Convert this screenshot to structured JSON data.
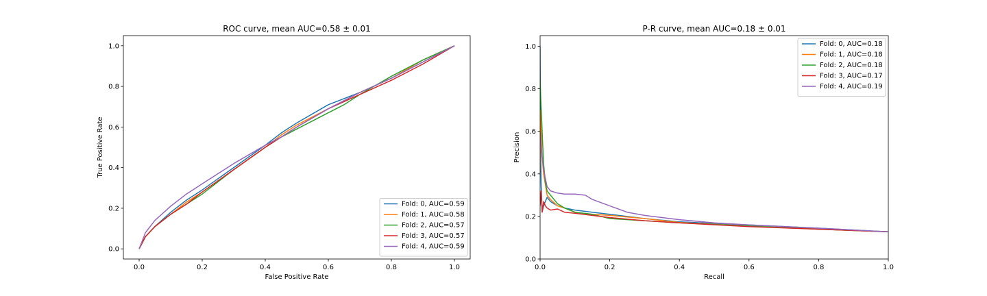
{
  "chart_data": [
    {
      "type": "line",
      "title": "ROC curve, mean AUC=0.58 ± 0.01",
      "xlabel": "False Positive Rate",
      "ylabel": "True Positive Rate",
      "xlim": [
        -0.05,
        1.05
      ],
      "ylim": [
        -0.05,
        1.05
      ],
      "xticks": [
        0.0,
        0.2,
        0.4,
        0.6,
        0.8,
        1.0
      ],
      "yticks": [
        0.0,
        0.2,
        0.4,
        0.6,
        0.8,
        1.0
      ],
      "legend_position": "lower-right",
      "grid": false,
      "series": [
        {
          "name": "Fold: 0, AUC=0.59",
          "color": "#1f77b4",
          "x": [
            0,
            0.02,
            0.05,
            0.1,
            0.15,
            0.2,
            0.3,
            0.4,
            0.45,
            0.5,
            0.6,
            0.7,
            0.8,
            0.9,
            1.0
          ],
          "y": [
            0,
            0.06,
            0.11,
            0.18,
            0.24,
            0.29,
            0.4,
            0.51,
            0.57,
            0.62,
            0.71,
            0.77,
            0.84,
            0.92,
            1.0
          ]
        },
        {
          "name": "Fold: 1, AUC=0.58",
          "color": "#ff7f0e",
          "x": [
            0,
            0.02,
            0.05,
            0.1,
            0.15,
            0.2,
            0.3,
            0.4,
            0.45,
            0.5,
            0.6,
            0.7,
            0.8,
            0.9,
            1.0
          ],
          "y": [
            0,
            0.06,
            0.11,
            0.17,
            0.23,
            0.28,
            0.39,
            0.5,
            0.56,
            0.61,
            0.69,
            0.77,
            0.84,
            0.93,
            1.0
          ]
        },
        {
          "name": "Fold: 2, AUC=0.57",
          "color": "#2ca02c",
          "x": [
            0,
            0.02,
            0.05,
            0.1,
            0.15,
            0.2,
            0.3,
            0.4,
            0.45,
            0.5,
            0.6,
            0.65,
            0.7,
            0.8,
            0.9,
            1.0
          ],
          "y": [
            0,
            0.06,
            0.11,
            0.17,
            0.22,
            0.27,
            0.39,
            0.5,
            0.55,
            0.59,
            0.67,
            0.71,
            0.76,
            0.85,
            0.93,
            1.0
          ]
        },
        {
          "name": "Fold: 3, AUC=0.57",
          "color": "#d62728",
          "x": [
            0,
            0.02,
            0.05,
            0.1,
            0.15,
            0.2,
            0.3,
            0.4,
            0.45,
            0.5,
            0.6,
            0.7,
            0.8,
            0.9,
            1.0
          ],
          "y": [
            0,
            0.06,
            0.11,
            0.17,
            0.22,
            0.28,
            0.39,
            0.5,
            0.55,
            0.6,
            0.69,
            0.76,
            0.83,
            0.91,
            1.0
          ]
        },
        {
          "name": "Fold: 4, AUC=0.59",
          "color": "#9467bd",
          "x": [
            0,
            0.02,
            0.05,
            0.1,
            0.15,
            0.2,
            0.3,
            0.4,
            0.45,
            0.5,
            0.6,
            0.7,
            0.8,
            0.9,
            1.0
          ],
          "y": [
            0,
            0.08,
            0.14,
            0.21,
            0.27,
            0.32,
            0.42,
            0.51,
            0.55,
            0.6,
            0.69,
            0.77,
            0.84,
            0.92,
            1.0
          ]
        }
      ]
    },
    {
      "type": "line",
      "title": "P-R curve, mean AUC=0.18 ± 0.01",
      "xlabel": "Recall",
      "ylabel": "Precision",
      "xlim": [
        0,
        1
      ],
      "ylim": [
        0,
        1.05
      ],
      "xticks": [
        0.0,
        0.2,
        0.4,
        0.6,
        0.8,
        1.0
      ],
      "yticks": [
        0.0,
        0.2,
        0.4,
        0.6,
        0.8,
        1.0
      ],
      "legend_position": "upper-right",
      "grid": false,
      "series": [
        {
          "name": "Fold: 0, AUC=0.18",
          "color": "#1f77b4",
          "x": [
            0,
            0.001,
            0.003,
            0.006,
            0.01,
            0.015,
            0.02,
            0.03,
            0.05,
            0.07,
            0.1,
            0.15,
            0.2,
            0.3,
            0.4,
            0.6,
            0.8,
            1.0
          ],
          "y": [
            1.0,
            0.6,
            0.35,
            0.22,
            0.25,
            0.27,
            0.29,
            0.27,
            0.25,
            0.24,
            0.23,
            0.22,
            0.21,
            0.19,
            0.175,
            0.16,
            0.145,
            0.128
          ]
        },
        {
          "name": "Fold: 1, AUC=0.18",
          "color": "#ff7f0e",
          "x": [
            0,
            0.002,
            0.005,
            0.01,
            0.015,
            0.02,
            0.03,
            0.05,
            0.07,
            0.1,
            0.15,
            0.2,
            0.3,
            0.4,
            0.6,
            0.8,
            1.0
          ],
          "y": [
            0.4,
            0.7,
            0.5,
            0.4,
            0.35,
            0.3,
            0.28,
            0.25,
            0.24,
            0.22,
            0.21,
            0.205,
            0.19,
            0.172,
            0.155,
            0.14,
            0.128
          ]
        },
        {
          "name": "Fold: 2, AUC=0.18",
          "color": "#2ca02c",
          "x": [
            0,
            0.002,
            0.004,
            0.007,
            0.01,
            0.015,
            0.02,
            0.03,
            0.05,
            0.07,
            0.1,
            0.15,
            0.2,
            0.3,
            0.4,
            0.6,
            0.8,
            1.0
          ],
          "y": [
            0.85,
            0.75,
            0.68,
            0.55,
            0.45,
            0.36,
            0.32,
            0.3,
            0.26,
            0.24,
            0.22,
            0.21,
            0.19,
            0.18,
            0.17,
            0.155,
            0.14,
            0.128
          ]
        },
        {
          "name": "Fold: 3, AUC=0.17",
          "color": "#d62728",
          "x": [
            0,
            0.003,
            0.006,
            0.01,
            0.015,
            0.02,
            0.03,
            0.05,
            0.07,
            0.1,
            0.15,
            0.2,
            0.3,
            0.4,
            0.6,
            0.8,
            1.0
          ],
          "y": [
            0.25,
            0.32,
            0.22,
            0.27,
            0.25,
            0.24,
            0.23,
            0.235,
            0.22,
            0.215,
            0.205,
            0.195,
            0.18,
            0.17,
            0.152,
            0.14,
            0.128
          ]
        },
        {
          "name": "Fold: 4, AUC=0.19",
          "color": "#9467bd",
          "x": [
            0,
            0.002,
            0.005,
            0.01,
            0.015,
            0.02,
            0.03,
            0.05,
            0.07,
            0.1,
            0.13,
            0.15,
            0.2,
            0.25,
            0.3,
            0.4,
            0.5,
            0.6,
            0.8,
            1.0
          ],
          "y": [
            0.6,
            0.55,
            0.5,
            0.42,
            0.38,
            0.34,
            0.32,
            0.31,
            0.305,
            0.305,
            0.3,
            0.28,
            0.25,
            0.22,
            0.205,
            0.185,
            0.17,
            0.16,
            0.145,
            0.128
          ]
        }
      ]
    }
  ]
}
